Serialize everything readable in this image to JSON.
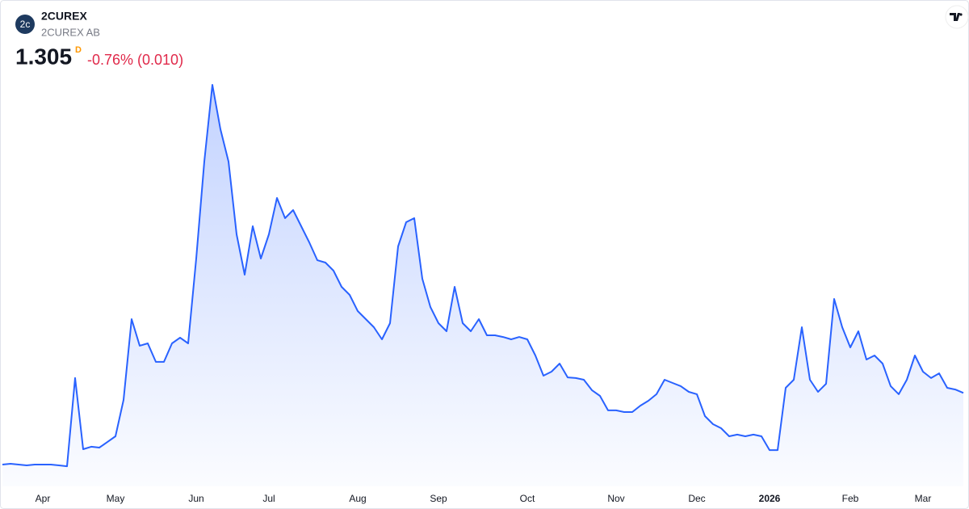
{
  "chart_data": {
    "type": "area",
    "title": "2CUREX",
    "subtitle": "2CUREX AB",
    "price": 1.305,
    "interval": "D",
    "change": "-0.76% (0.010)",
    "logo": "2c",
    "color": "#2962ff",
    "ylim": [
      0.6,
      4.0
    ],
    "categories": [
      null,
      null,
      null,
      null,
      null,
      "Apr",
      null,
      null,
      null,
      null,
      null,
      null,
      null,
      null,
      "May",
      null,
      null,
      null,
      null,
      null,
      null,
      null,
      null,
      null,
      "Jun",
      null,
      null,
      null,
      null,
      null,
      null,
      null,
      null,
      "Jul",
      null,
      null,
      null,
      null,
      null,
      null,
      null,
      null,
      null,
      null,
      "Aug",
      null,
      null,
      null,
      null,
      null,
      null,
      null,
      null,
      null,
      "Sep",
      null,
      null,
      null,
      null,
      null,
      null,
      null,
      null,
      null,
      null,
      "Oct",
      null,
      null,
      null,
      null,
      null,
      null,
      null,
      null,
      null,
      null,
      "Nov",
      null,
      null,
      null,
      null,
      null,
      null,
      null,
      null,
      null,
      "Dec",
      null,
      null,
      null,
      null,
      null,
      null,
      null,
      null,
      "2026",
      null,
      null,
      null,
      null,
      null,
      null,
      null,
      null,
      null,
      "Feb",
      null,
      null,
      null,
      null,
      null,
      null,
      null,
      null,
      "Mar",
      null,
      null,
      null,
      null,
      null
    ],
    "values": [
      0.702,
      0.709,
      0.702,
      0.695,
      0.702,
      0.702,
      0.702,
      0.695,
      0.688,
      1.43,
      0.831,
      0.852,
      0.845,
      0.892,
      0.94,
      1.246,
      1.926,
      1.702,
      1.722,
      1.566,
      1.566,
      1.722,
      1.77,
      1.722,
      2.436,
      3.252,
      3.898,
      3.524,
      3.252,
      2.64,
      2.3,
      2.708,
      2.436,
      2.64,
      2.946,
      2.776,
      2.844,
      2.708,
      2.572,
      2.422,
      2.402,
      2.334,
      2.198,
      2.13,
      1.994,
      1.926,
      1.858,
      1.756,
      1.892,
      2.538,
      2.742,
      2.776,
      2.266,
      2.028,
      1.892,
      1.824,
      2.198,
      1.892,
      1.824,
      1.926,
      1.79,
      1.79,
      1.776,
      1.756,
      1.776,
      1.756,
      1.62,
      1.45,
      1.484,
      1.552,
      1.436,
      1.43,
      1.416,
      1.328,
      1.28,
      1.158,
      1.158,
      1.144,
      1.144,
      1.198,
      1.239,
      1.294,
      1.416,
      1.389,
      1.362,
      1.314,
      1.294,
      1.11,
      1.042,
      1.008,
      0.94,
      0.954,
      0.94,
      0.954,
      0.94,
      0.824,
      0.824,
      1.348,
      1.416,
      1.858,
      1.416,
      1.314,
      1.382,
      2.096,
      1.858,
      1.688,
      1.824,
      1.586,
      1.62,
      1.552,
      1.362,
      1.294,
      1.416,
      1.62,
      1.484,
      1.43,
      1.47,
      1.348,
      1.334,
      1.305
    ]
  }
}
